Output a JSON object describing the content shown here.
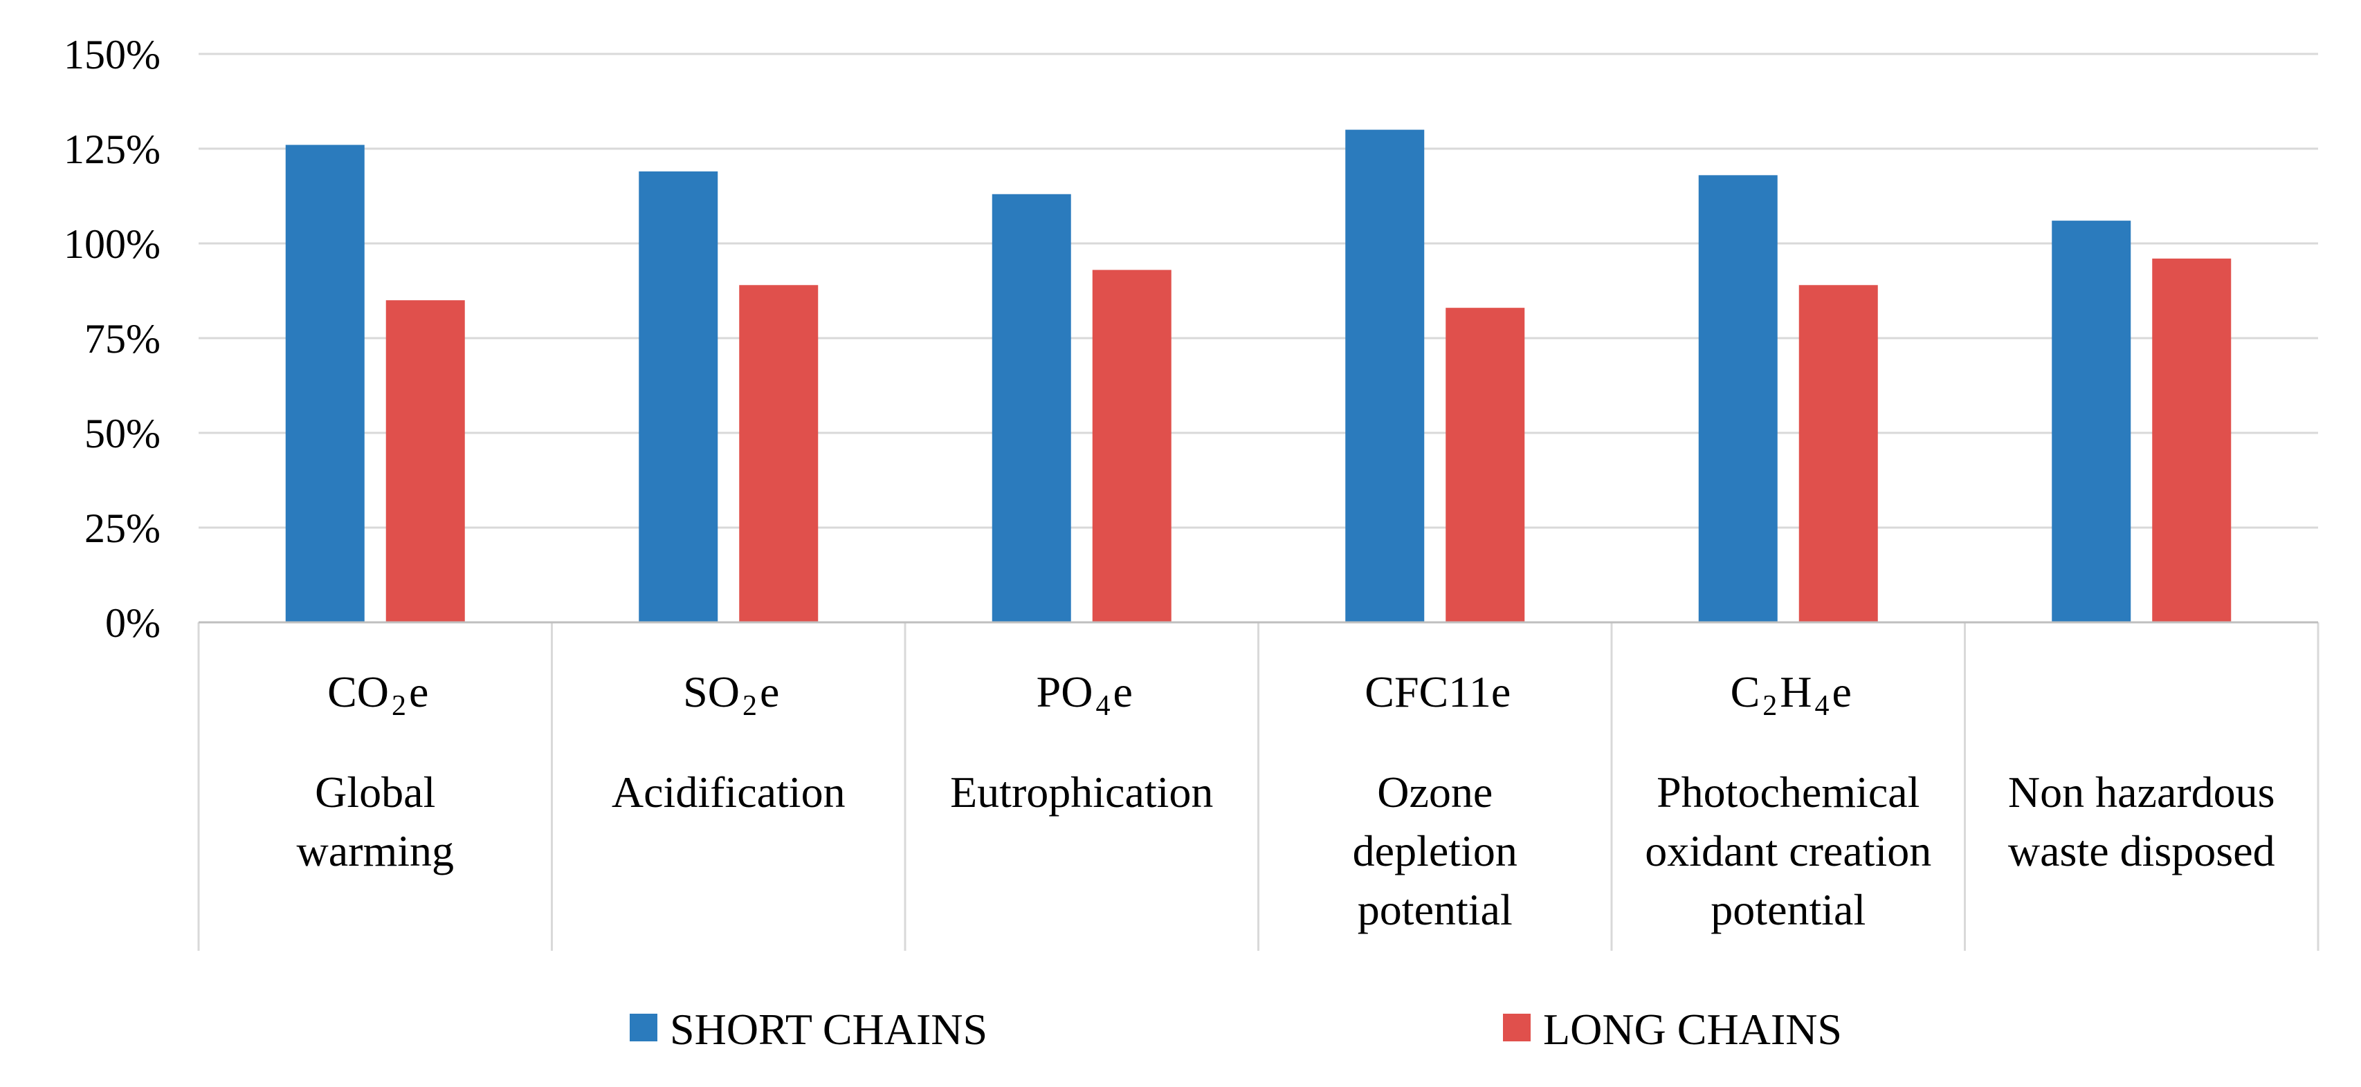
{
  "chart_data": {
    "type": "bar",
    "title": "",
    "xlabel": "",
    "ylabel": "",
    "ylim": [
      0,
      150
    ],
    "yticks": [
      "0%",
      "25%",
      "50%",
      "75%",
      "100%",
      "125%",
      "150%"
    ],
    "grid": true,
    "legend_position": "bottom",
    "categories": [
      {
        "abbr": "CO2e",
        "abbr_parts": [
          [
            "CO",
            ""
          ],
          [
            "2",
            "sub"
          ],
          [
            "e",
            ""
          ]
        ],
        "name_lines": [
          "Global",
          "warming"
        ]
      },
      {
        "abbr": "SO2e",
        "abbr_parts": [
          [
            "SO",
            ""
          ],
          [
            "2",
            "sub"
          ],
          [
            "e",
            ""
          ]
        ],
        "name_lines": [
          "Acidification"
        ]
      },
      {
        "abbr": "PO4e",
        "abbr_parts": [
          [
            "PO",
            ""
          ],
          [
            "4",
            "sub"
          ],
          [
            "e",
            ""
          ]
        ],
        "name_lines": [
          "Eutrophication"
        ]
      },
      {
        "abbr": "CFC11e",
        "abbr_parts": [
          [
            "CFC11e",
            ""
          ]
        ],
        "name_lines": [
          "Ozone",
          "depletion",
          "potential"
        ]
      },
      {
        "abbr": "C2H4e",
        "abbr_parts": [
          [
            "C",
            ""
          ],
          [
            "2",
            "sub"
          ],
          [
            "H",
            ""
          ],
          [
            "4",
            "sub"
          ],
          [
            "e",
            ""
          ]
        ],
        "name_lines": [
          "Photochemical",
          "oxidant creation",
          "potential"
        ]
      },
      {
        "abbr": "",
        "abbr_parts": [],
        "name_lines": [
          "Non hazardous",
          "waste disposed"
        ]
      }
    ],
    "series": [
      {
        "name": "SHORT CHAINS",
        "color": "#2b7bbd",
        "values": [
          126,
          119,
          113,
          130,
          118,
          106
        ]
      },
      {
        "name": "LONG CHAINS",
        "color": "#e0504c",
        "values": [
          85,
          89,
          93,
          83,
          89,
          96
        ]
      }
    ]
  }
}
